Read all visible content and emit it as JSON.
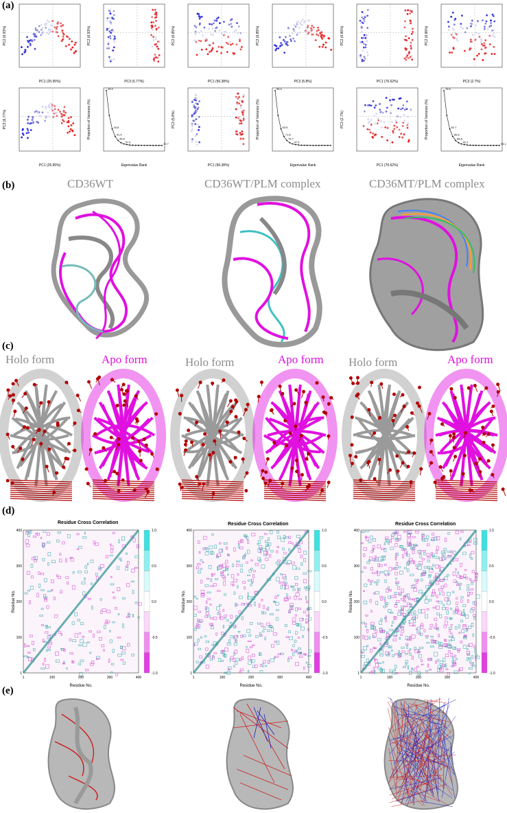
{
  "panels": {
    "a": "(a)",
    "b": "(b)",
    "c": "(c)",
    "d": "(d)",
    "e": "(e)"
  },
  "pca": [
    {
      "xlabel": "PC1 (25.95%)",
      "ylabel": "PC2 (6.93%)"
    },
    {
      "xlabel": "PC3 (6.77%)",
      "ylabel": "PC2 (6.93%)"
    },
    {
      "xlabel": "PC1 (56.38%)",
      "ylabel": "PC2 (6.85%)"
    },
    {
      "xlabel": "PC3 (5.8%)",
      "ylabel": "PC2 (6.85%)"
    },
    {
      "xlabel": "PC1 (76.62%)",
      "ylabel": "PC2 (6.86%)"
    },
    {
      "xlabel": "PC3 (2.7%)",
      "ylabel": "PC2 (6.86%)"
    },
    {
      "xlabel": "PC1 (25.95%)",
      "ylabel": "PC3 (6.77%)"
    },
    {
      "xlabel": "PC1 (56.38%)",
      "ylabel": "PC3 (5.8%)"
    },
    {
      "xlabel": "PC1 (76.62%)",
      "ylabel": "PC3 (2.7%)"
    }
  ],
  "scree": [
    {
      "xlabel": "Eigenvalue Rank",
      "ylabel": "Proportion of Variance (%)",
      "labels": [
        "25.9",
        "34.8",
        "41.5",
        "46.6",
        "57.6",
        "72.7"
      ]
    },
    {
      "xlabel": "Eigenvalue Rank",
      "ylabel": "Proportion of Variance (%)",
      "labels": [
        "56.4",
        "63.6",
        "71.8",
        "76.7",
        "97.5"
      ]
    },
    {
      "xlabel": "Eigenvalue Rank",
      "ylabel": "Proportion of Variance (%)",
      "labels": [
        "76.6",
        "82.7",
        "86.8",
        "88.8",
        "92.3",
        "95.1"
      ]
    }
  ],
  "titles_b": [
    "CD36WT",
    "CD36WT/PLM  complex",
    "CD36MT/PLM  complex"
  ],
  "forms_c": {
    "holo": "Holo  form",
    "apo": "Apo  form"
  },
  "cc": {
    "title": "Residue Cross Correlation",
    "xlabel": "Residue No.",
    "ylabel": "Residue No.",
    "xticks": [
      "1",
      "100",
      "200",
      "300",
      "400"
    ],
    "yticks": [
      "1",
      "100",
      "200",
      "300",
      "400"
    ],
    "cbar": [
      "1.0",
      "0.5",
      "0.0",
      "-0.5",
      "-1.0"
    ]
  },
  "colors": {
    "holo": "#8c8c8c",
    "apo": "#e010e0",
    "arrow": "#b00000",
    "cyan": "#40e0e0",
    "blue": "#2020d0",
    "red": "#e02020"
  }
}
